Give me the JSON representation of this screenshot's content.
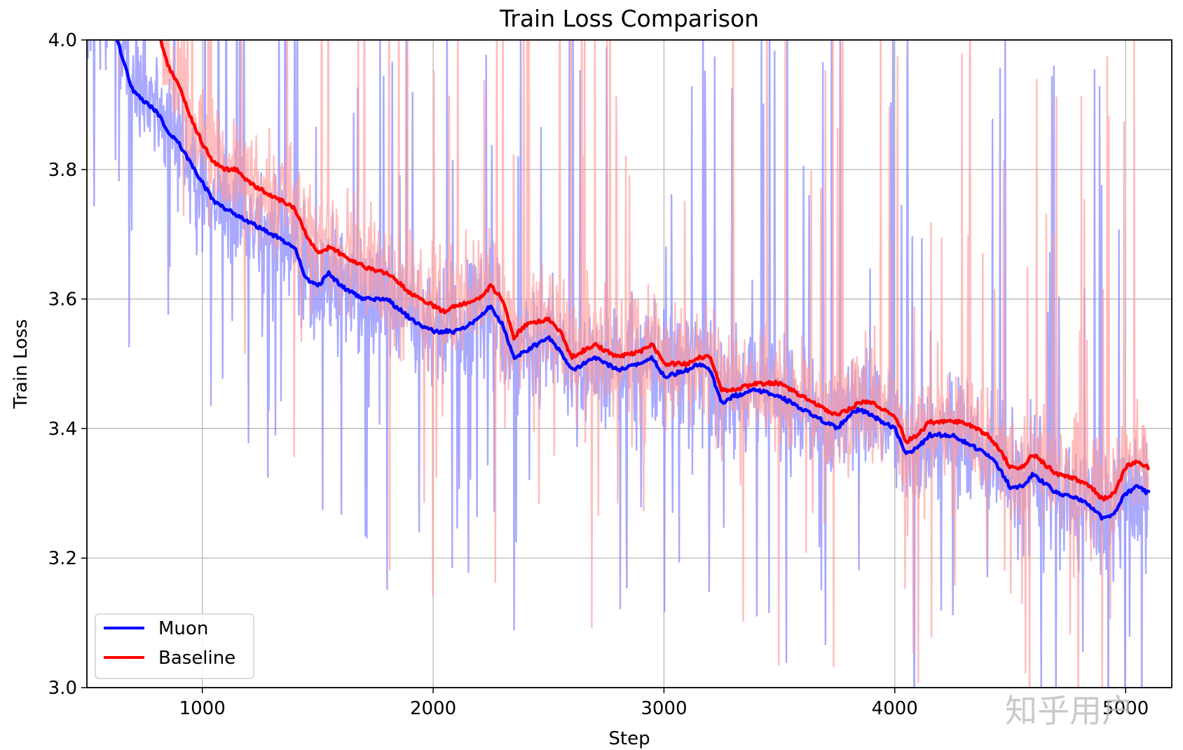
{
  "chart_data": {
    "type": "line",
    "title": "Train Loss Comparison",
    "xlabel": "Step",
    "ylabel": "Train Loss",
    "xlim": [
      500,
      5200
    ],
    "ylim": [
      3.0,
      4.0
    ],
    "xticks": [
      1000,
      2000,
      3000,
      4000,
      5000
    ],
    "xtick_labels": [
      "1000",
      "2000",
      "3000",
      "4000",
      "5000"
    ],
    "yticks": [
      3.0,
      3.2,
      3.4,
      3.6,
      3.8,
      4.0
    ],
    "ytick_labels": [
      "3.0",
      "3.2",
      "3.4",
      "3.6",
      "3.8",
      "4.0"
    ],
    "grid": true,
    "legend_position": "lower-left",
    "series": [
      {
        "name": "Muon",
        "color": "#0000ff",
        "raw_color": "#8c8cff",
        "smoothed": {
          "x": [
            630,
            700,
            800,
            850,
            900,
            1000,
            1050,
            1150,
            1200,
            1300,
            1400,
            1450,
            1500,
            1550,
            1600,
            1700,
            1800,
            1900,
            2000,
            2050,
            2100,
            2200,
            2250,
            2300,
            2350,
            2400,
            2500,
            2550,
            2600,
            2650,
            2700,
            2800,
            2900,
            2950,
            3000,
            3100,
            3150,
            3200,
            3250,
            3300,
            3400,
            3500,
            3600,
            3700,
            3750,
            3800,
            3850,
            3900,
            3950,
            4000,
            4050,
            4100,
            4150,
            4200,
            4250,
            4300,
            4350,
            4400,
            4450,
            4500,
            4550,
            4600,
            4700,
            4800,
            4850,
            4900,
            4950,
            5000,
            5050,
            5100
          ],
          "y": [
            4.0,
            3.92,
            3.89,
            3.86,
            3.84,
            3.78,
            3.75,
            3.73,
            3.72,
            3.7,
            3.68,
            3.63,
            3.62,
            3.64,
            3.62,
            3.6,
            3.6,
            3.57,
            3.55,
            3.55,
            3.55,
            3.57,
            3.59,
            3.56,
            3.51,
            3.52,
            3.54,
            3.52,
            3.49,
            3.5,
            3.51,
            3.49,
            3.5,
            3.51,
            3.48,
            3.49,
            3.5,
            3.49,
            3.44,
            3.45,
            3.46,
            3.45,
            3.43,
            3.41,
            3.4,
            3.42,
            3.43,
            3.42,
            3.41,
            3.4,
            3.36,
            3.37,
            3.39,
            3.39,
            3.39,
            3.38,
            3.37,
            3.36,
            3.34,
            3.31,
            3.31,
            3.33,
            3.3,
            3.29,
            3.28,
            3.26,
            3.27,
            3.3,
            3.31,
            3.3
          ]
        }
      },
      {
        "name": "Baseline",
        "color": "#ff0000",
        "raw_color": "#ff9a9a",
        "smoothed": {
          "x": [
            820,
            850,
            900,
            950,
            1000,
            1050,
            1100,
            1150,
            1200,
            1300,
            1400,
            1450,
            1500,
            1550,
            1600,
            1700,
            1800,
            1900,
            2000,
            2050,
            2100,
            2200,
            2250,
            2300,
            2350,
            2400,
            2500,
            2550,
            2600,
            2650,
            2700,
            2800,
            2900,
            2950,
            3000,
            3100,
            3150,
            3200,
            3250,
            3300,
            3400,
            3500,
            3600,
            3700,
            3750,
            3800,
            3850,
            3900,
            3950,
            4000,
            4050,
            4100,
            4150,
            4200,
            4250,
            4300,
            4350,
            4400,
            4450,
            4500,
            4550,
            4600,
            4700,
            4800,
            4850,
            4900,
            4950,
            5000,
            5050,
            5100
          ],
          "y": [
            4.0,
            3.96,
            3.93,
            3.88,
            3.84,
            3.81,
            3.8,
            3.8,
            3.78,
            3.76,
            3.74,
            3.7,
            3.67,
            3.68,
            3.67,
            3.65,
            3.64,
            3.61,
            3.59,
            3.58,
            3.59,
            3.6,
            3.62,
            3.6,
            3.54,
            3.56,
            3.57,
            3.55,
            3.51,
            3.52,
            3.53,
            3.51,
            3.52,
            3.53,
            3.5,
            3.5,
            3.51,
            3.51,
            3.46,
            3.46,
            3.47,
            3.47,
            3.45,
            3.43,
            3.42,
            3.43,
            3.44,
            3.44,
            3.43,
            3.42,
            3.38,
            3.39,
            3.41,
            3.41,
            3.41,
            3.41,
            3.4,
            3.39,
            3.37,
            3.34,
            3.34,
            3.36,
            3.33,
            3.32,
            3.31,
            3.29,
            3.3,
            3.34,
            3.35,
            3.34
          ]
        }
      }
    ]
  },
  "watermark": "知乎用户"
}
